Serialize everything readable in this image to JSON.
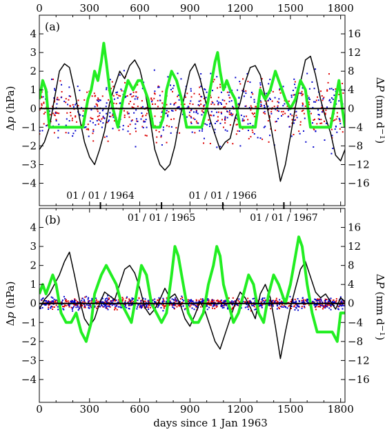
{
  "figure": {
    "top_axis_label": "",
    "bottom_axis_label": "days since 1 Jan 1963",
    "left_axis_label": {
      "main": "Δ",
      "var": "p",
      "unit": " (hPa)"
    },
    "right_axis_label": {
      "main": "Δ",
      "var": "P",
      "unit": " (mm d",
      "sup": "−1",
      "close": ")"
    }
  },
  "colors": {
    "black_series": "#000000",
    "green_series": "#22ee22",
    "red_dots": "#dd0000",
    "blue_dots": "#0000cc"
  },
  "chart_data": [
    {
      "type": "line",
      "panel": "(a)",
      "xlim": [
        0,
        1826
      ],
      "xticks": [
        "0",
        "300",
        "600",
        "900",
        "1200",
        "1500",
        "1800"
      ],
      "ylim_left": [
        -5.2,
        5.0
      ],
      "yticks_left": [
        "-4",
        "-3",
        "-2",
        "-1",
        "0",
        "1",
        "2",
        "3",
        "4"
      ],
      "ylim_right": [
        -20.8,
        20.0
      ],
      "yticks_right": [
        "-16",
        "-12",
        "-8",
        "-4",
        "0",
        "4",
        "8",
        "12",
        "16"
      ],
      "zero_line": true,
      "date_markers": [
        {
          "day": 365,
          "label": "01 / 01 / 1964",
          "position": "above"
        },
        {
          "day": 730,
          "label": "01 / 01 / 1965",
          "position": "below"
        },
        {
          "day": 1096,
          "label": "01 / 01 / 1966",
          "position": "above"
        },
        {
          "day": 1461,
          "label": "01 / 01 / 1967",
          "position": "below"
        }
      ],
      "series": [
        {
          "axis": "left",
          "style": "line",
          "color": "#000000",
          "x": [
            0,
            30,
            60,
            90,
            120,
            150,
            180,
            210,
            240,
            270,
            300,
            330,
            360,
            390,
            420,
            450,
            480,
            510,
            540,
            570,
            600,
            630,
            660,
            690,
            720,
            750,
            780,
            810,
            840,
            870,
            900,
            930,
            960,
            990,
            1020,
            1050,
            1080,
            1110,
            1140,
            1170,
            1200,
            1230,
            1260,
            1290,
            1320,
            1350,
            1380,
            1410,
            1440,
            1470,
            1500,
            1530,
            1560,
            1590,
            1620,
            1650,
            1680,
            1710,
            1740,
            1770,
            1800,
            1826
          ],
          "y": [
            -2.2,
            -1.8,
            -1.0,
            0.5,
            2.0,
            2.4,
            2.2,
            1.0,
            -0.5,
            -1.8,
            -2.6,
            -3.0,
            -2.2,
            -1.2,
            0.3,
            1.2,
            2.0,
            1.6,
            2.3,
            2.6,
            2.1,
            1.0,
            -0.5,
            -2.2,
            -3.0,
            -3.3,
            -3.0,
            -2.0,
            -0.5,
            0.8,
            2.0,
            2.4,
            1.6,
            0.5,
            -0.6,
            -1.4,
            -2.2,
            -1.8,
            -1.6,
            -0.5,
            0.3,
            1.4,
            2.2,
            2.3,
            1.8,
            0.6,
            -0.8,
            -2.3,
            -3.9,
            -3.0,
            -1.5,
            0.1,
            1.4,
            2.6,
            2.8,
            1.8,
            0.5,
            -0.5,
            -1.3,
            -2.5,
            -2.8,
            -2.2
          ]
        },
        {
          "axis": "right",
          "style": "thick-line",
          "color": "#22ee22",
          "x": [
            0,
            20,
            40,
            60,
            80,
            110,
            140,
            170,
            200,
            230,
            260,
            290,
            310,
            330,
            350,
            370,
            385,
            400,
            420,
            440,
            470,
            500,
            530,
            560,
            590,
            610,
            630,
            650,
            680,
            700,
            720,
            740,
            760,
            790,
            820,
            850,
            880,
            910,
            940,
            970,
            1000,
            1030,
            1050,
            1065,
            1080,
            1100,
            1120,
            1140,
            1170,
            1200,
            1230,
            1260,
            1290,
            1320,
            1350,
            1380,
            1410,
            1430,
            1450,
            1470,
            1500,
            1530,
            1560,
            1590,
            1620,
            1650,
            1680,
            1710,
            1740,
            1770,
            1790,
            1810,
            1826
          ],
          "y": [
            2,
            6,
            4,
            -4,
            -4,
            -4,
            -4,
            -4,
            -4,
            -4,
            -4,
            2,
            4,
            8,
            6,
            10,
            14,
            10,
            4,
            0,
            -4,
            2,
            6,
            4,
            6,
            6,
            4,
            2,
            -4,
            -4,
            -4,
            -2,
            4,
            8,
            6,
            2,
            -4,
            -4,
            -4,
            -4,
            0,
            6,
            10,
            12,
            8,
            4,
            6,
            4,
            2,
            -4,
            -4,
            -4,
            -4,
            4,
            2,
            4,
            8,
            6,
            4,
            2,
            0,
            2,
            6,
            4,
            -4,
            -4,
            -4,
            -4,
            -4,
            2,
            6,
            0,
            -4
          ]
        },
        {
          "axis": "right",
          "style": "dots",
          "color": "#dd0000",
          "seed": 7,
          "amplitude": 9.0,
          "count": 460
        },
        {
          "axis": "right",
          "style": "dots",
          "color": "#0000cc",
          "seed": 13,
          "amplitude": 10.0,
          "count": 440
        }
      ]
    },
    {
      "type": "line",
      "panel": "(b)",
      "xlim": [
        0,
        1826
      ],
      "xticks": [
        "0",
        "300",
        "600",
        "900",
        "1200",
        "1500",
        "1800"
      ],
      "xlabel": "days since 1 Jan 1963",
      "ylim_left": [
        -5.2,
        5.0
      ],
      "yticks_left": [
        "-4",
        "-3",
        "-2",
        "-1",
        "0",
        "1",
        "2",
        "3",
        "4"
      ],
      "ylim_right": [
        -20.8,
        20.0
      ],
      "yticks_right": [
        "-16",
        "-12",
        "-8",
        "-4",
        "0",
        "4",
        "8",
        "12",
        "16"
      ],
      "zero_line": true,
      "series": [
        {
          "axis": "left",
          "style": "line",
          "color": "#000000",
          "x": [
            0,
            30,
            60,
            90,
            120,
            150,
            180,
            210,
            240,
            270,
            300,
            330,
            360,
            390,
            420,
            450,
            480,
            510,
            540,
            570,
            600,
            630,
            660,
            690,
            720,
            750,
            780,
            810,
            840,
            870,
            900,
            930,
            960,
            990,
            1020,
            1050,
            1080,
            1110,
            1140,
            1170,
            1200,
            1230,
            1260,
            1290,
            1320,
            1350,
            1380,
            1410,
            1440,
            1470,
            1500,
            1530,
            1560,
            1590,
            1620,
            1650,
            1680,
            1710,
            1740,
            1770,
            1800,
            1826
          ],
          "y": [
            -0.3,
            0.2,
            0.5,
            1.0,
            1.5,
            2.2,
            2.7,
            1.5,
            0.2,
            -0.8,
            -1.2,
            -0.8,
            0.0,
            0.6,
            0.4,
            0.2,
            1.0,
            1.8,
            2.0,
            1.6,
            0.8,
            -0.2,
            -0.6,
            -0.3,
            0.2,
            0.8,
            0.3,
            0.5,
            0.0,
            -0.8,
            -1.2,
            -0.6,
            0.1,
            -0.4,
            -1.2,
            -2.0,
            -2.4,
            -1.6,
            -0.8,
            0.0,
            0.6,
            0.3,
            -0.2,
            -0.8,
            0.5,
            1.0,
            0.3,
            -1.2,
            -2.9,
            -1.5,
            -0.2,
            0.8,
            1.8,
            2.2,
            1.4,
            0.6,
            0.3,
            0.5,
            0.1,
            -0.3,
            0.3,
            0.1
          ]
        },
        {
          "axis": "right",
          "style": "thick-line",
          "color": "#22ee22",
          "x": [
            0,
            20,
            40,
            60,
            80,
            100,
            130,
            160,
            190,
            220,
            250,
            280,
            310,
            330,
            350,
            370,
            400,
            430,
            460,
            490,
            520,
            550,
            580,
            610,
            640,
            670,
            700,
            730,
            760,
            790,
            810,
            830,
            860,
            890,
            920,
            950,
            980,
            1010,
            1040,
            1060,
            1080,
            1100,
            1130,
            1160,
            1190,
            1220,
            1250,
            1280,
            1310,
            1340,
            1370,
            1400,
            1430,
            1450,
            1470,
            1500,
            1530,
            1550,
            1570,
            1600,
            1630,
            1660,
            1690,
            1720,
            1750,
            1780,
            1800,
            1826
          ],
          "y": [
            2,
            4,
            2,
            4,
            6,
            4,
            -2,
            -4,
            -4,
            -2,
            -6,
            -8,
            -4,
            2,
            4,
            6,
            8,
            6,
            4,
            0,
            -2,
            -4,
            2,
            8,
            6,
            0,
            -2,
            -4,
            -2,
            6,
            12,
            10,
            4,
            -2,
            -4,
            -4,
            -2,
            4,
            8,
            12,
            10,
            4,
            0,
            -4,
            -2,
            2,
            6,
            4,
            -2,
            -4,
            2,
            6,
            4,
            2,
            0,
            4,
            10,
            14,
            12,
            4,
            -2,
            -6,
            -6,
            -6,
            -6,
            -8,
            -2,
            -2
          ]
        },
        {
          "axis": "right",
          "style": "dots",
          "color": "#dd0000",
          "seed": 29,
          "amplitude": 1.6,
          "count": 620
        },
        {
          "axis": "right",
          "style": "dots",
          "color": "#0000cc",
          "seed": 41,
          "amplitude": 1.8,
          "count": 620
        }
      ]
    }
  ]
}
